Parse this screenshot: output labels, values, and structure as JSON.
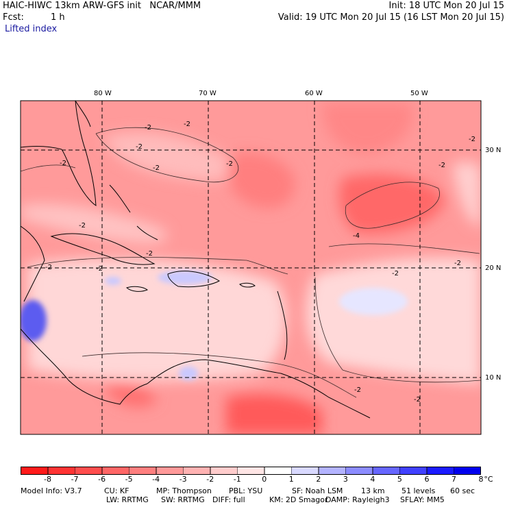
{
  "header": {
    "title": "HAIC-HIWC 13km ARW-GFS init   NCAR/MMM",
    "init": "Init: 18 UTC Mon 20 Jul 15",
    "fcst_label": "Fcst:",
    "fcst_value": "1 h",
    "valid": "Valid: 19 UTC Mon 20 Jul 15 (16 LST Mon 20 Jul 15)",
    "field": "Lifted index"
  },
  "map": {
    "lon_labels": [
      "80 W",
      "70 W",
      "60 W",
      "50 W"
    ],
    "lat_labels": [
      "30 N",
      "20 N",
      "10 N"
    ],
    "contour_labels": [
      "-2",
      "-2",
      "-2",
      "-2",
      "-2",
      "-2",
      "-2",
      "-2",
      "-2",
      "-2",
      "-2",
      "-2",
      "-4",
      "-2",
      "-2",
      "-2",
      "-2"
    ]
  },
  "colorbar": {
    "ticks": [
      "-8",
      "-7",
      "-6",
      "-5",
      "-4",
      "-3",
      "-2",
      "-1",
      "0",
      "1",
      "2",
      "3",
      "4",
      "5",
      "6",
      "7",
      "8"
    ],
    "unit": "°C",
    "colors": [
      "#ff1a1a",
      "#ff3333",
      "#ff4d4d",
      "#ff6666",
      "#ff7f7f",
      "#ff9999",
      "#ffb2b2",
      "#ffcccc",
      "#ffe5e5",
      "#ffffff",
      "#d9d9ff",
      "#b3b3ff",
      "#8c8cff",
      "#6666ff",
      "#4040ff",
      "#1a1aff",
      "#0000ee"
    ]
  },
  "info": {
    "line1": [
      "Model Info: V3.7",
      "CU: KF",
      "MP: Thompson",
      "PBL: YSU",
      "SF: Noah LSM",
      "13 km",
      "51 levels",
      "60 sec"
    ],
    "line2": [
      "LW: RRTMG",
      "SW: RRTMG",
      "DIFF: full",
      "KM: 2D Smagor",
      "DAMP: Rayleigh3",
      "SFLAY: MM5"
    ]
  }
}
